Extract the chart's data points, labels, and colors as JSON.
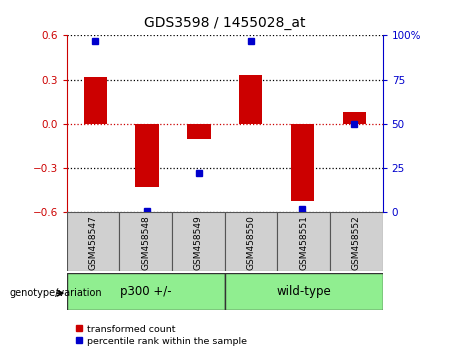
{
  "title": "GDS3598 / 1455028_at",
  "samples": [
    "GSM458547",
    "GSM458548",
    "GSM458549",
    "GSM458550",
    "GSM458551",
    "GSM458552"
  ],
  "red_values": [
    0.32,
    -0.43,
    -0.1,
    0.33,
    -0.52,
    0.08
  ],
  "blue_values": [
    97,
    1,
    22,
    97,
    2,
    50
  ],
  "ylim_left": [
    -0.6,
    0.6
  ],
  "ylim_right": [
    0,
    100
  ],
  "yticks_left": [
    -0.6,
    -0.3,
    0.0,
    0.3,
    0.6
  ],
  "yticks_right": [
    0,
    25,
    50,
    75,
    100
  ],
  "ytick_labels_right": [
    "0",
    "25",
    "50",
    "75",
    "100%"
  ],
  "group_label": "genotype/variation",
  "group1_label": "p300 +/-",
  "group2_label": "wild-type",
  "group_color": "#90EE90",
  "legend_red": "transformed count",
  "legend_blue": "percentile rank within the sample",
  "red_color": "#CC0000",
  "blue_color": "#0000CC",
  "bar_width": 0.45,
  "blue_marker_size": 5,
  "label_box_color": "#D0D0D0",
  "title_fontsize": 10
}
